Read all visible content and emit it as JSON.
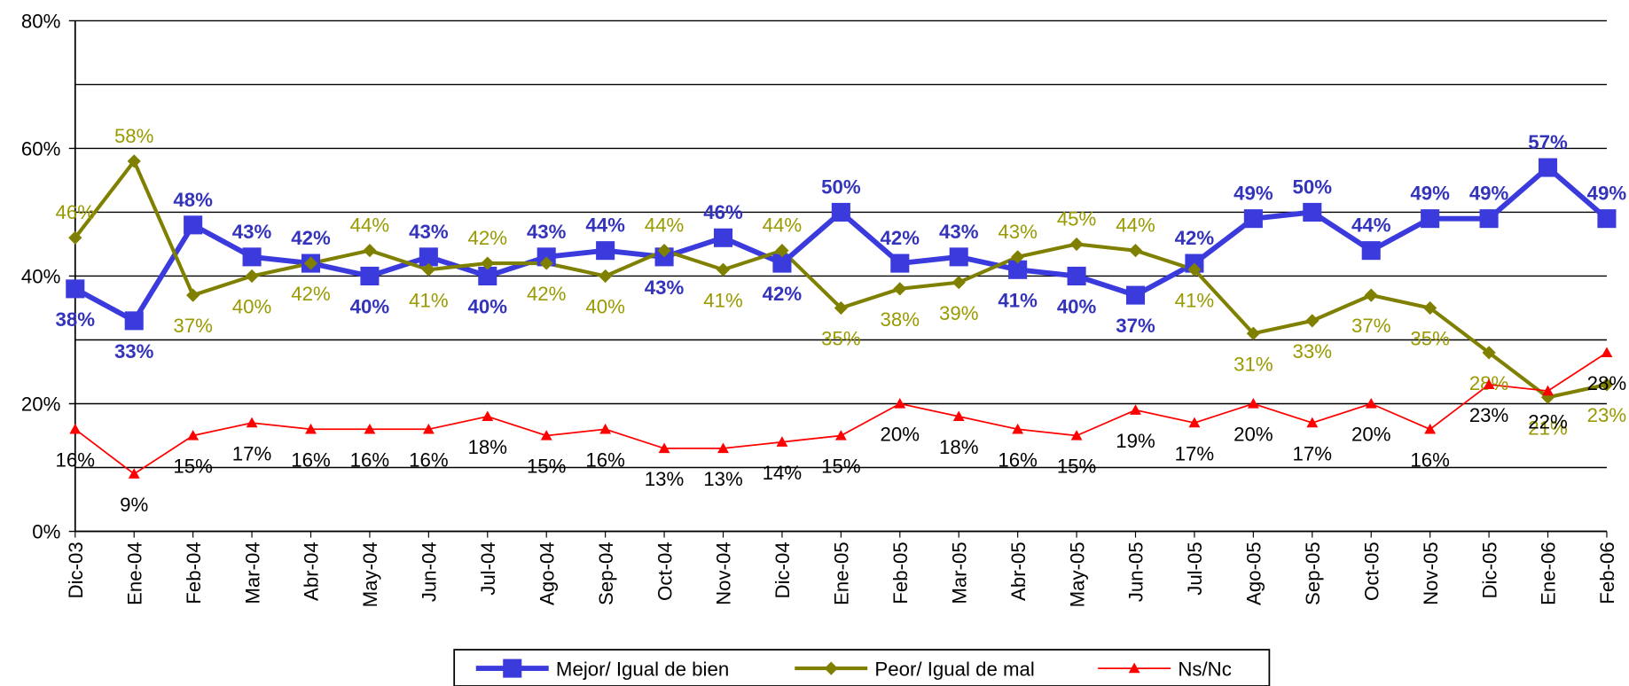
{
  "chart_data": {
    "type": "line",
    "categories": [
      "Dic-03",
      "Ene-04",
      "Feb-04",
      "Mar-04",
      "Abr-04",
      "May-04",
      "Jun-04",
      "Jul-04",
      "Ago-04",
      "Sep-04",
      "Oct-04",
      "Nov-04",
      "Dic-04",
      "Ene-05",
      "Feb-05",
      "Mar-05",
      "Abr-05",
      "May-05",
      "Jun-05",
      "Jul-05",
      "Ago-05",
      "Sep-05",
      "Oct-05",
      "Nov-05",
      "Dic-05",
      "Ene-06",
      "Feb-06"
    ],
    "series": [
      {
        "name": "Mejor/ Igual de bien",
        "color": "#3b3bdd",
        "label_color": "#3333bb",
        "marker": "square",
        "values": [
          38,
          33,
          48,
          43,
          42,
          40,
          43,
          40,
          43,
          44,
          43,
          46,
          42,
          50,
          42,
          43,
          41,
          40,
          37,
          42,
          49,
          50,
          44,
          49,
          49,
          57,
          49
        ],
        "value_labels": [
          "38%",
          "33%",
          "48%",
          "43%",
          "42%",
          "40%",
          "43%",
          "40%",
          "43%",
          "44%",
          "43%",
          "46%",
          "42%",
          "50%",
          "42%",
          "43%",
          "41%",
          "40%",
          "37%",
          "42%",
          "49%",
          "50%",
          "44%",
          "49%",
          "49%",
          "57%",
          "49%"
        ]
      },
      {
        "name": "Peor/ Igual de mal",
        "color": "#808000",
        "label_color": "#999900",
        "marker": "diamond",
        "values": [
          46,
          58,
          37,
          40,
          42,
          44,
          41,
          42,
          42,
          40,
          44,
          41,
          44,
          35,
          38,
          39,
          43,
          45,
          44,
          41,
          31,
          33,
          37,
          35,
          28,
          21,
          23
        ],
        "value_labels": [
          "46%",
          "58%",
          "37%",
          "40%",
          "42%",
          "44%",
          "41%",
          "42%",
          "42%",
          "40%",
          "44%",
          "41%",
          "44%",
          "35%",
          "38%",
          "39%",
          "43%",
          "45%",
          "44%",
          "41%",
          "31%",
          "33%",
          "37%",
          "35%",
          "28%",
          "21%",
          "23%"
        ]
      },
      {
        "name": "Ns/Nc",
        "color": "#ff0000",
        "label_color": "#000000",
        "marker": "triangle",
        "values": [
          16,
          9,
          15,
          17,
          16,
          16,
          16,
          18,
          15,
          16,
          13,
          13,
          14,
          15,
          20,
          18,
          16,
          15,
          19,
          17,
          20,
          17,
          20,
          16,
          23,
          22,
          28
        ],
        "value_labels": [
          "16%",
          "9%",
          "15%",
          "17%",
          "16%",
          "16%",
          "16%",
          "18%",
          "15%",
          "16%",
          "13%",
          "13%",
          "14%",
          "15%",
          "20%",
          "18%",
          "16%",
          "15%",
          "19%",
          "17%",
          "20%",
          "17%",
          "20%",
          "16%",
          "23%",
          "22%",
          "28%"
        ]
      }
    ],
    "ylim": [
      0,
      80
    ],
    "yticks": [
      {
        "value": 0,
        "label": "0%"
      },
      {
        "value": 20,
        "label": "20%"
      },
      {
        "value": 40,
        "label": "40%"
      },
      {
        "value": 60,
        "label": "60%"
      },
      {
        "value": 80,
        "label": "80%"
      }
    ],
    "minor_gridlines": [
      10,
      30,
      50,
      70
    ],
    "grid": true,
    "legend": "bottom"
  }
}
